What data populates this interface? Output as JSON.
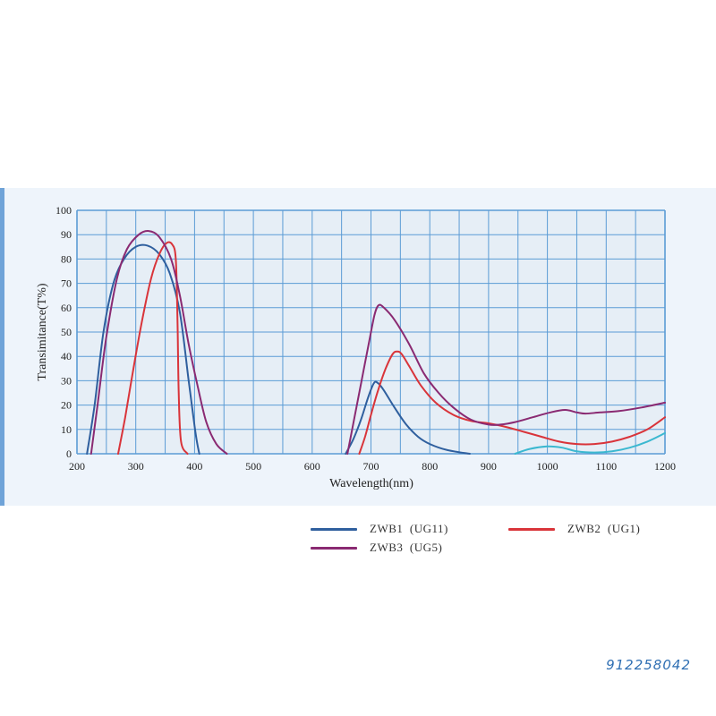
{
  "chart_data": {
    "type": "line",
    "xlabel": "Wavelength(nm)",
    "ylabel": "Transimitance(T%)",
    "xlim": [
      200,
      1200
    ],
    "ylim": [
      0,
      100
    ],
    "xticks": [
      200,
      300,
      400,
      500,
      600,
      700,
      800,
      900,
      1000,
      1100,
      1200
    ],
    "yticks": [
      0,
      10,
      20,
      30,
      40,
      50,
      60,
      70,
      80,
      90,
      100
    ],
    "grid": true,
    "legend_position": "bottom",
    "series": [
      {
        "name": "ZWB1  (UG11)",
        "color": "#2f5f9e",
        "segments": [
          [
            [
              217,
              0
            ],
            [
              230,
              20
            ],
            [
              245,
              50
            ],
            [
              262,
              70
            ],
            [
              280,
              80
            ],
            [
              300,
              85
            ],
            [
              320,
              85.5
            ],
            [
              340,
              82
            ],
            [
              358,
              74
            ],
            [
              375,
              58
            ],
            [
              390,
              30
            ],
            [
              402,
              8
            ],
            [
              408,
              0
            ]
          ],
          [
            [
              657,
              0
            ],
            [
              670,
              6
            ],
            [
              683,
              14
            ],
            [
              695,
              23
            ],
            [
              705,
              29
            ],
            [
              712,
              29
            ],
            [
              722,
              26
            ],
            [
              740,
              19
            ],
            [
              760,
              12
            ],
            [
              780,
              7
            ],
            [
              800,
              4
            ],
            [
              830,
              1.5
            ],
            [
              868,
              0
            ]
          ]
        ]
      },
      {
        "name": "ZWB2  (UG1)",
        "color": "#d9343a",
        "segments": [
          [
            [
              270,
              0
            ],
            [
              282,
              15
            ],
            [
              296,
              35
            ],
            [
              311,
              55
            ],
            [
              326,
              72
            ],
            [
              340,
              82
            ],
            [
              352,
              86.5
            ],
            [
              362,
              86
            ],
            [
              368,
              80
            ],
            [
              371,
              55
            ],
            [
              373,
              25
            ],
            [
              377,
              5
            ],
            [
              388,
              0
            ]
          ],
          [
            [
              680,
              0
            ],
            [
              690,
              7
            ],
            [
              700,
              16
            ],
            [
              712,
              26
            ],
            [
              725,
              35
            ],
            [
              737,
              41
            ],
            [
              745,
              42
            ],
            [
              752,
              41
            ],
            [
              765,
              36
            ],
            [
              785,
              28
            ],
            [
              810,
              21
            ],
            [
              840,
              16
            ],
            [
              870,
              13.5
            ],
            [
              900,
              12.5
            ],
            [
              930,
              11
            ],
            [
              960,
              9
            ],
            [
              990,
              7
            ],
            [
              1020,
              5
            ],
            [
              1050,
              4
            ],
            [
              1080,
              4
            ],
            [
              1110,
              5
            ],
            [
              1140,
              7
            ],
            [
              1170,
              10
            ],
            [
              1200,
              15
            ]
          ]
        ]
      },
      {
        "name": "ZWB3  (UG5)",
        "color": "#8a2a72",
        "segments": [
          [
            [
              224,
              0
            ],
            [
              235,
              20
            ],
            [
              250,
              48
            ],
            [
              268,
              72
            ],
            [
              285,
              84
            ],
            [
              305,
              90
            ],
            [
              322,
              91.5
            ],
            [
              340,
              89
            ],
            [
              360,
              80
            ],
            [
              375,
              65
            ],
            [
              390,
              45
            ],
            [
              405,
              28
            ],
            [
              420,
              13
            ],
            [
              437,
              4
            ],
            [
              455,
              0
            ]
          ],
          [
            [
              660,
              0
            ],
            [
              672,
              15
            ],
            [
              684,
              30
            ],
            [
              696,
              45
            ],
            [
              706,
              57
            ],
            [
              713,
              61
            ],
            [
              722,
              60
            ],
            [
              740,
              55
            ],
            [
              765,
              45
            ],
            [
              790,
              33
            ],
            [
              815,
              25
            ],
            [
              840,
              19
            ],
            [
              870,
              14
            ],
            [
              900,
              12
            ],
            [
              920,
              12
            ],
            [
              945,
              13
            ],
            [
              975,
              15
            ],
            [
              1005,
              17
            ],
            [
              1030,
              18
            ],
            [
              1050,
              17
            ],
            [
              1065,
              16.5
            ],
            [
              1090,
              17
            ],
            [
              1120,
              17.5
            ],
            [
              1160,
              19
            ],
            [
              1200,
              21
            ]
          ]
        ]
      },
      {
        "name": "",
        "color": "#3bb8d0",
        "segments": [
          [
            [
              945,
              0
            ],
            [
              970,
              2
            ],
            [
              1000,
              3
            ],
            [
              1025,
              2.5
            ],
            [
              1050,
              1
            ],
            [
              1080,
              0.5
            ],
            [
              1110,
              1
            ],
            [
              1140,
              2.5
            ],
            [
              1170,
              5
            ],
            [
              1200,
              8.5
            ]
          ]
        ]
      }
    ]
  },
  "legend": {
    "items": [
      {
        "label": "ZWB1  (UG11)",
        "color": "#2f5f9e"
      },
      {
        "label": "ZWB2  (UG1)",
        "color": "#d9343a"
      },
      {
        "label": "ZWB3  (UG5)",
        "color": "#8a2a72"
      }
    ]
  },
  "watermark": "912258042"
}
